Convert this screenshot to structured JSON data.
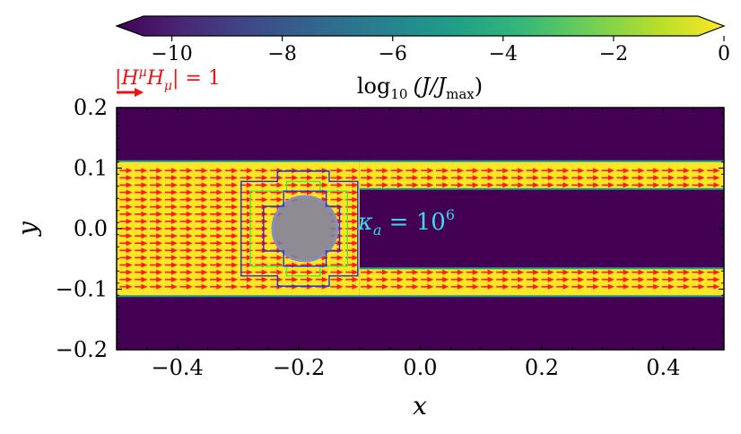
{
  "chart_data": {
    "type": "heatmap",
    "title": "",
    "xlabel": "x",
    "ylabel": "y",
    "xlim": [
      -0.5,
      0.5
    ],
    "ylim": [
      -0.2,
      0.2
    ],
    "x_ticks": [
      -0.4,
      -0.2,
      0.0,
      0.2,
      0.4
    ],
    "x_tick_labels": [
      "−0.4",
      "−0.2",
      "0.0",
      "0.2",
      "0.4"
    ],
    "y_ticks": [
      -0.2,
      -0.1,
      0.0,
      0.1,
      0.2
    ],
    "y_tick_labels": [
      "−0.2",
      "−0.1",
      "0.0",
      "0.1",
      "0.2"
    ],
    "colorbar": {
      "label_prefix": "log",
      "label_sub": "10",
      "label_expr": "(J/J",
      "label_expr_sub": "max",
      "label_close": ")",
      "range": [
        -11,
        0
      ],
      "ticks": [
        -10,
        -8,
        -6,
        -4,
        -2,
        0
      ],
      "tick_labels": [
        "−10",
        "−8",
        "−6",
        "−4",
        "−2",
        "0"
      ],
      "colors": [
        "#440154",
        "#482878",
        "#3e4989",
        "#31688e",
        "#26828e",
        "#1f9e89",
        "#35b779",
        "#6ece58",
        "#b5de2b",
        "#fde725"
      ]
    },
    "field": {
      "background_value": -11,
      "channel_value": 0,
      "left_band_y": [
        -0.11,
        0.11
      ],
      "right_band_top_y": [
        0.067,
        0.11
      ],
      "right_band_bottom_y": [
        -0.11,
        -0.067
      ],
      "left_region_x": [
        -0.5,
        -0.1
      ]
    },
    "obstacle": {
      "center": [
        -0.19,
        0.0
      ],
      "radius": 0.053,
      "label_prefix": "κ",
      "label_sub": "a",
      "label_mid": " = 10",
      "label_sup": "6",
      "color": "#3fd6ee"
    },
    "arrows": {
      "rows_y": [
        -0.096,
        -0.084,
        -0.072,
        -0.06,
        -0.048,
        -0.036,
        -0.024,
        -0.012,
        0.0,
        0.012,
        0.024,
        0.036,
        0.048,
        0.06,
        0.072,
        0.084,
        0.096
      ],
      "x_start": -0.495,
      "x_spacing": 0.0248,
      "length": 0.021,
      "color": "#ff1a1a"
    },
    "mesh_outlines": [
      {
        "color": "#1a2fe0",
        "points": [
          [
            -0.295,
            0.078
          ],
          [
            -0.235,
            0.078
          ],
          [
            -0.235,
            0.095
          ],
          [
            -0.15,
            0.095
          ],
          [
            -0.15,
            0.078
          ],
          [
            -0.103,
            0.078
          ],
          [
            -0.103,
            -0.078
          ],
          [
            -0.15,
            -0.078
          ],
          [
            -0.15,
            -0.095
          ],
          [
            -0.235,
            -0.095
          ],
          [
            -0.235,
            -0.078
          ],
          [
            -0.295,
            -0.078
          ]
        ]
      },
      {
        "color": "#3cf03c",
        "points": [
          [
            -0.28,
            0.062
          ],
          [
            -0.22,
            0.062
          ],
          [
            -0.22,
            0.078
          ],
          [
            -0.165,
            0.078
          ],
          [
            -0.165,
            0.062
          ],
          [
            -0.12,
            0.062
          ],
          [
            -0.12,
            -0.062
          ],
          [
            -0.165,
            -0.062
          ],
          [
            -0.165,
            -0.078
          ],
          [
            -0.22,
            -0.078
          ],
          [
            -0.22,
            -0.062
          ],
          [
            -0.28,
            -0.062
          ]
        ]
      },
      {
        "color": "#1a2fe0",
        "points": [
          [
            -0.258,
            0.037
          ],
          [
            -0.225,
            0.037
          ],
          [
            -0.225,
            0.062
          ],
          [
            -0.155,
            0.062
          ],
          [
            -0.155,
            0.037
          ],
          [
            -0.133,
            0.037
          ],
          [
            -0.133,
            -0.037
          ],
          [
            -0.155,
            -0.037
          ],
          [
            -0.155,
            -0.062
          ],
          [
            -0.225,
            -0.062
          ],
          [
            -0.225,
            -0.037
          ],
          [
            -0.258,
            -0.037
          ]
        ]
      }
    ],
    "legend_arrow": {
      "label_open": "|H",
      "label_sup1": "μ",
      "label_mid": "H",
      "label_sub": "μ",
      "label_close": "| = 1",
      "color": "#ee1111"
    }
  }
}
